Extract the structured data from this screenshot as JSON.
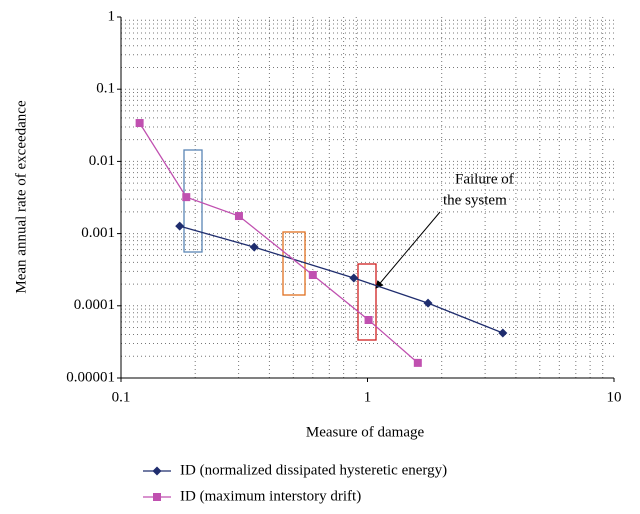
{
  "chart_data": {
    "type": "line",
    "x_label": "Measure of damage",
    "y_label": "Mean annual rate of exceedance",
    "annotation": [
      "Failure of",
      "the system"
    ],
    "xscale": "log",
    "yscale": "log",
    "grid": true,
    "xlim": [
      0.1,
      10
    ],
    "xticks": [
      0.1,
      1,
      10
    ],
    "ylim": [
      1e-05,
      1
    ],
    "yticks": [
      1e-05,
      0.0001,
      0.001,
      0.01,
      0.1,
      1
    ],
    "series": [
      {
        "name": "ID (normalized dissipated hysteretic energy)",
        "color": "#1f2d6e",
        "marker": "diamond",
        "x": [
          0.173,
          0.347,
          0.88,
          1.76,
          3.54
        ],
        "values": [
          0.00127,
          0.00065,
          0.000243,
          0.000109,
          4.2e-05
        ]
      },
      {
        "name": "ID (maximum interstory drift)",
        "color": "#c050b0",
        "marker": "square",
        "x": [
          0.119,
          0.184,
          0.301,
          0.6,
          1.01,
          1.6
        ],
        "values": [
          0.034,
          0.0032,
          0.00175,
          0.000267,
          6.36e-05,
          1.62e-05
        ]
      }
    ]
  }
}
